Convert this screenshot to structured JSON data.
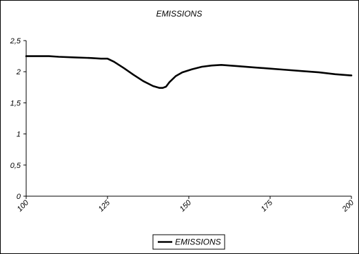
{
  "chart_data": {
    "type": "line",
    "title": "EMISSIONS",
    "xlabel": "",
    "ylabel": "",
    "xlim": [
      100,
      200
    ],
    "ylim": [
      0,
      2.5
    ],
    "x_ticks": [
      100,
      125,
      150,
      175,
      200
    ],
    "x_tick_labels": [
      "100",
      "125",
      "150",
      "175",
      "200"
    ],
    "y_ticks": [
      0,
      0.5,
      1,
      1.5,
      2,
      2.5
    ],
    "y_tick_labels": [
      "0",
      "0,5",
      "1",
      "1,5",
      "2",
      "2,5"
    ],
    "grid": false,
    "legend_position": "bottom",
    "series": [
      {
        "name": "EMISSIONS",
        "color": "#000000",
        "x": [
          100,
          107,
          110,
          115,
          120,
          123,
          125,
          127,
          130,
          133,
          136,
          139,
          141,
          142,
          143,
          144,
          146,
          148,
          151,
          154,
          157,
          160,
          165,
          170,
          175,
          180,
          185,
          190,
          195,
          200
        ],
        "y": [
          2.25,
          2.25,
          2.24,
          2.23,
          2.22,
          2.21,
          2.21,
          2.16,
          2.06,
          1.95,
          1.85,
          1.77,
          1.74,
          1.74,
          1.76,
          1.83,
          1.93,
          1.99,
          2.04,
          2.08,
          2.1,
          2.11,
          2.09,
          2.07,
          2.05,
          2.03,
          2.01,
          1.99,
          1.96,
          1.94
        ]
      }
    ]
  }
}
